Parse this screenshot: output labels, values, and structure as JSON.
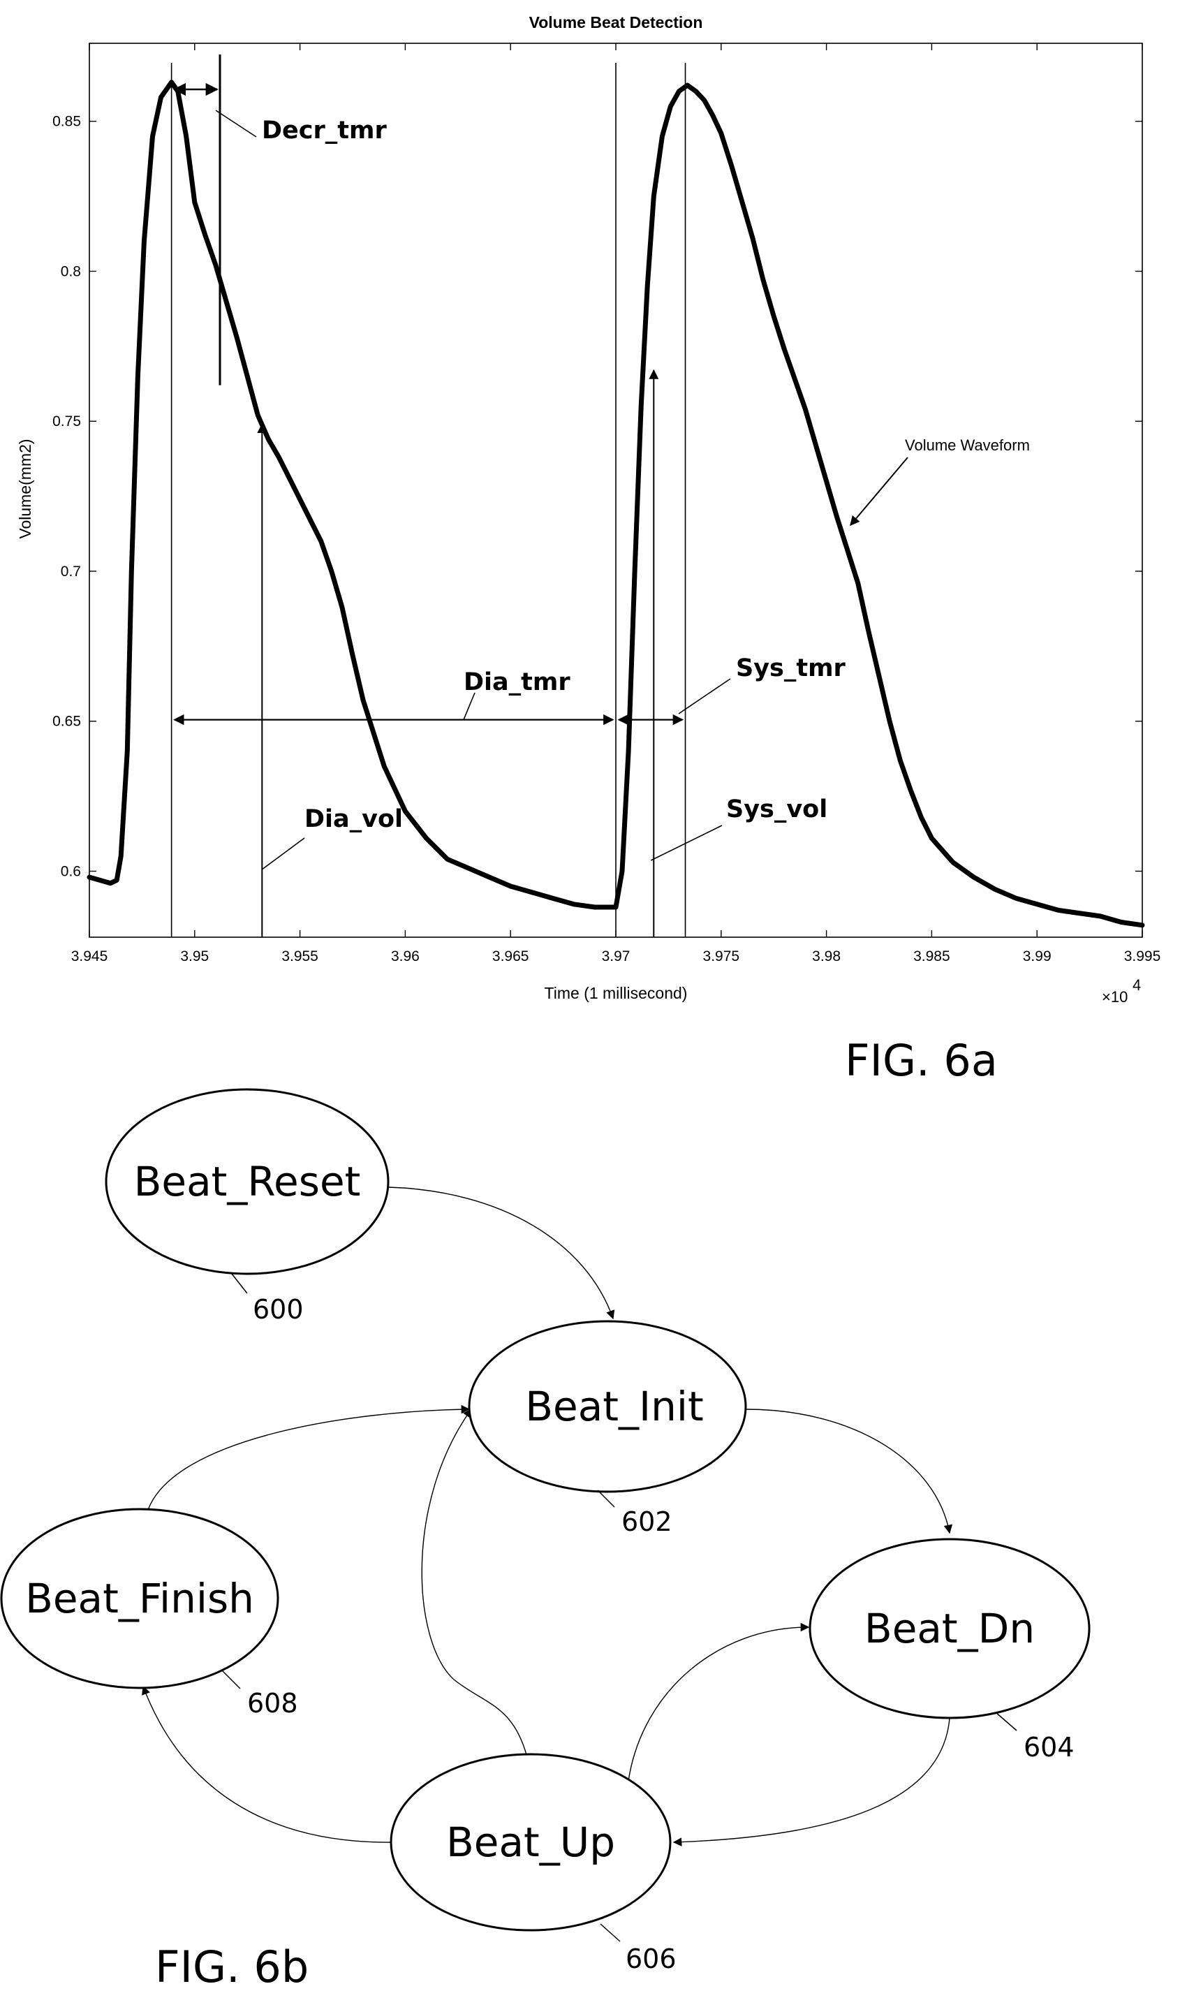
{
  "chart_data": {
    "type": "line",
    "title": "Volume Beat Detection",
    "xlabel": "Time (1 millisecond)",
    "ylabel": "Volume(mm2)",
    "x_multiplier": "×10",
    "x_multiplier_exp": "4",
    "xlim": [
      3.945,
      3.995
    ],
    "ylim": [
      0.578,
      0.876
    ],
    "x_ticks": [
      3.945,
      3.95,
      3.955,
      3.96,
      3.965,
      3.97,
      3.975,
      3.98,
      3.985,
      3.99,
      3.995
    ],
    "x_tick_labels": [
      "3.945",
      "3.95",
      "3.955",
      "3.96",
      "3.965",
      "3.97",
      "3.975",
      "3.98",
      "3.985",
      "3.99",
      "3.995"
    ],
    "y_ticks": [
      0.6,
      0.65,
      0.7,
      0.75,
      0.8,
      0.85
    ],
    "y_tick_labels": [
      "0.6",
      "0.65",
      "0.7",
      "0.75",
      "0.8",
      "0.85"
    ],
    "series": [
      {
        "name": "Volume Waveform",
        "x": [
          3.945,
          3.9455,
          3.946,
          3.9463,
          3.9465,
          3.9468,
          3.947,
          3.9473,
          3.9476,
          3.948,
          3.9484,
          3.9489,
          3.9492,
          3.9496,
          3.95,
          3.9505,
          3.951,
          3.9515,
          3.952,
          3.9525,
          3.953,
          3.9535,
          3.954,
          3.9545,
          3.955,
          3.9555,
          3.956,
          3.9565,
          3.957,
          3.9575,
          3.958,
          3.959,
          3.96,
          3.961,
          3.962,
          3.963,
          3.964,
          3.965,
          3.966,
          3.967,
          3.968,
          3.969,
          3.97,
          3.9703,
          3.9706,
          3.9709,
          3.9712,
          3.9715,
          3.9718,
          3.9722,
          3.9726,
          3.973,
          3.9734,
          3.9738,
          3.9742,
          3.9746,
          3.975,
          3.9755,
          3.976,
          3.9765,
          3.977,
          3.9775,
          3.978,
          3.9785,
          3.979,
          3.9795,
          3.98,
          3.9805,
          3.981,
          3.9815,
          3.982,
          3.9825,
          3.983,
          3.9835,
          3.984,
          3.9845,
          3.985,
          3.986,
          3.987,
          3.988,
          3.989,
          3.99,
          3.991,
          3.992,
          3.993,
          3.994,
          3.995
        ],
        "y": [
          0.598,
          0.597,
          0.596,
          0.597,
          0.605,
          0.64,
          0.7,
          0.765,
          0.81,
          0.845,
          0.858,
          0.863,
          0.86,
          0.845,
          0.823,
          0.812,
          0.802,
          0.79,
          0.778,
          0.765,
          0.752,
          0.744,
          0.738,
          0.731,
          0.724,
          0.717,
          0.71,
          0.7,
          0.688,
          0.672,
          0.657,
          0.635,
          0.62,
          0.611,
          0.604,
          0.601,
          0.598,
          0.595,
          0.593,
          0.591,
          0.589,
          0.588,
          0.588,
          0.6,
          0.64,
          0.7,
          0.755,
          0.795,
          0.825,
          0.845,
          0.855,
          0.86,
          0.862,
          0.86,
          0.857,
          0.852,
          0.846,
          0.835,
          0.823,
          0.811,
          0.797,
          0.785,
          0.774,
          0.764,
          0.754,
          0.742,
          0.73,
          0.718,
          0.707,
          0.696,
          0.68,
          0.665,
          0.65,
          0.637,
          0.627,
          0.618,
          0.611,
          0.603,
          0.598,
          0.594,
          0.591,
          0.589,
          0.587,
          0.586,
          0.585,
          0.583,
          0.582
        ]
      }
    ],
    "markers": {
      "peak1": 3.9489,
      "decr": 3.9512,
      "dia_vol": 3.9532,
      "trough": 3.97,
      "sys_vol": 3.9718,
      "peak2": 3.9733
    },
    "annotations": {
      "decr_tmr": "Decr_tmr",
      "dia_tmr": "Dia_tmr",
      "dia_vol": "Dia_vol",
      "sys_tmr": "Sys_tmr",
      "sys_vol": "Sys_vol",
      "volume_waveform": "Volume Waveform"
    },
    "grid": false
  },
  "fig6a_label": "FIG. 6a",
  "fig6b_label": "FIG. 6b",
  "states": [
    {
      "id": "reset",
      "label": "Beat_Reset",
      "ref": "600"
    },
    {
      "id": "init",
      "label": "Beat_Init",
      "ref": "602"
    },
    {
      "id": "dn",
      "label": "Beat_Dn",
      "ref": "604"
    },
    {
      "id": "up",
      "label": "Beat_Up",
      "ref": "606"
    },
    {
      "id": "finish",
      "label": "Beat_Finish",
      "ref": "608"
    }
  ]
}
